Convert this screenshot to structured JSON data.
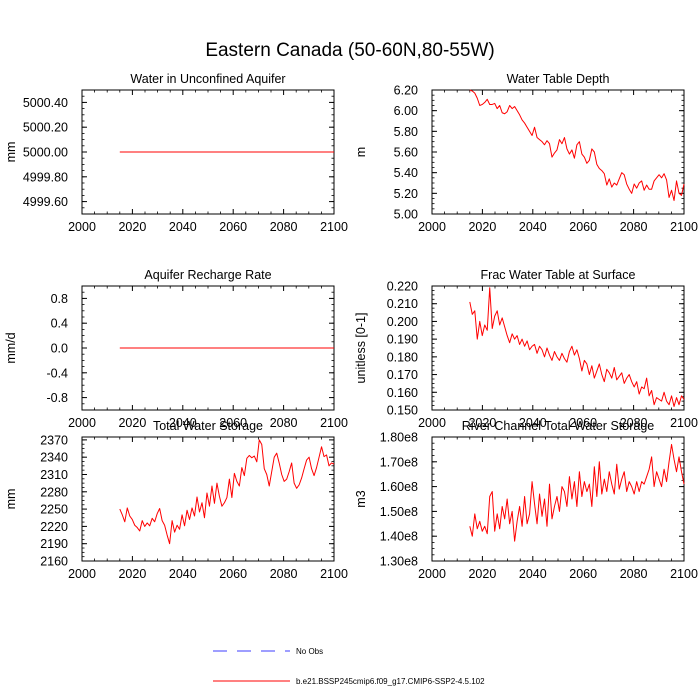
{
  "main_title": "Eastern Canada (50-60N,80-55W)",
  "colors": {
    "series": "#ff0000",
    "obs": "#3c3cff",
    "axis": "#000000"
  },
  "legend": {
    "obs_label": "No Obs",
    "model_label": "b.e21.BSSP245cmip6.f09_g17.CMIP6-SSP2-4.5.102"
  },
  "chart_data": [
    {
      "id": "water-in-unconfined-aquifer",
      "type": "line",
      "title": "Water in Unconfined Aquifer",
      "ylabel": "mm",
      "xlim": [
        2000,
        2100
      ],
      "ylim": [
        4999.5,
        5000.5
      ],
      "xticks": [
        2000,
        2020,
        2040,
        2060,
        2080,
        2100
      ],
      "xtick_labels": [
        "2000",
        "2020",
        "2040",
        "2060",
        "2080",
        "2100"
      ],
      "yticks": [
        4999.6,
        4999.8,
        5000.0,
        5000.2,
        5000.4
      ],
      "ytick_labels": [
        "4999.60",
        "4999.80",
        "5000.00",
        "5000.20",
        "5000.40"
      ],
      "series": [
        {
          "name": "b.e21.BSSP245cmip6.f09_g17.CMIP6-SSP2-4.5.102",
          "x_start": 2015,
          "x_end": 2100,
          "values": [
            5000.0,
            5000.0
          ]
        }
      ]
    },
    {
      "id": "water-table-depth",
      "type": "line",
      "title": "Water Table Depth",
      "ylabel": "m",
      "xlim": [
        2000,
        2100
      ],
      "ylim": [
        5.0,
        6.2
      ],
      "xticks": [
        2000,
        2020,
        2040,
        2060,
        2080,
        2100
      ],
      "xtick_labels": [
        "2000",
        "2020",
        "2040",
        "2060",
        "2080",
        "2100"
      ],
      "yticks": [
        5.0,
        5.2,
        5.4,
        5.6,
        5.8,
        6.0,
        6.2
      ],
      "ytick_labels": [
        "5.00",
        "5.20",
        "5.40",
        "5.60",
        "5.80",
        "6.00",
        "6.20"
      ],
      "series": [
        {
          "name": "b.e21.BSSP245cmip6.f09_g17.CMIP6-SSP2-4.5.102",
          "x_start": 2015,
          "x_end": 2100,
          "values": [
            6.2,
            6.19,
            6.17,
            6.12,
            6.05,
            6.06,
            6.08,
            6.11,
            6.06,
            6.06,
            6.07,
            6.02,
            6.05,
            5.98,
            5.97,
            5.99,
            6.05,
            6.02,
            6.04,
            6.0,
            5.96,
            5.91,
            5.88,
            5.84,
            5.8,
            5.76,
            5.84,
            5.74,
            5.72,
            5.7,
            5.67,
            5.71,
            5.68,
            5.55,
            5.59,
            5.62,
            5.72,
            5.68,
            5.74,
            5.63,
            5.58,
            5.62,
            5.54,
            5.67,
            5.7,
            5.58,
            5.55,
            5.49,
            5.52,
            5.63,
            5.6,
            5.48,
            5.44,
            5.42,
            5.39,
            5.28,
            5.34,
            5.26,
            5.3,
            5.28,
            5.34,
            5.4,
            5.38,
            5.29,
            5.24,
            5.2,
            5.29,
            5.25,
            5.3,
            5.32,
            5.23,
            5.28,
            5.24,
            5.24,
            5.32,
            5.35,
            5.38,
            5.35,
            5.39,
            5.33,
            5.16,
            5.23,
            5.13,
            5.32,
            5.2,
            5.18,
            5.29
          ]
        }
      ]
    },
    {
      "id": "aquifer-recharge-rate",
      "type": "line",
      "title": "Aquifer Recharge Rate",
      "ylabel": "mm/d",
      "xlim": [
        2000,
        2100
      ],
      "ylim": [
        -1.0,
        1.0
      ],
      "xticks": [
        2000,
        2020,
        2040,
        2060,
        2080,
        2100
      ],
      "xtick_labels": [
        "2000",
        "2020",
        "2040",
        "2060",
        "2080",
        "2100"
      ],
      "yticks": [
        -0.8,
        -0.4,
        0.0,
        0.4,
        0.8
      ],
      "ytick_labels": [
        "-0.8",
        "-0.4",
        "0.0",
        "0.4",
        "0.8"
      ],
      "series": [
        {
          "name": "b.e21.BSSP245cmip6.f09_g17.CMIP6-SSP2-4.5.102",
          "x_start": 2015,
          "x_end": 2100,
          "values": [
            0.0,
            0.0
          ]
        }
      ]
    },
    {
      "id": "frac-water-table-at-surface",
      "type": "line",
      "title": "Frac Water Table at Surface",
      "ylabel": "unitless [0-1]",
      "xlim": [
        2000,
        2100
      ],
      "ylim": [
        0.15,
        0.22
      ],
      "xticks": [
        2000,
        2020,
        2040,
        2060,
        2080,
        2100
      ],
      "xtick_labels": [
        "2000",
        "2020",
        "2040",
        "2060",
        "2080",
        "2100"
      ],
      "yticks": [
        0.15,
        0.16,
        0.17,
        0.18,
        0.19,
        0.2,
        0.21,
        0.22
      ],
      "ytick_labels": [
        "0.150",
        "0.160",
        "0.170",
        "0.180",
        "0.190",
        "0.200",
        "0.210",
        "0.220"
      ],
      "series": [
        {
          "name": "b.e21.BSSP245cmip6.f09_g17.CMIP6-SSP2-4.5.102",
          "x_start": 2015,
          "x_end": 2100,
          "values": [
            0.211,
            0.204,
            0.206,
            0.19,
            0.2,
            0.192,
            0.198,
            0.195,
            0.219,
            0.196,
            0.203,
            0.206,
            0.198,
            0.202,
            0.197,
            0.192,
            0.188,
            0.193,
            0.19,
            0.192,
            0.187,
            0.19,
            0.186,
            0.189,
            0.184,
            0.186,
            0.187,
            0.182,
            0.186,
            0.184,
            0.18,
            0.185,
            0.181,
            0.178,
            0.183,
            0.18,
            0.178,
            0.182,
            0.179,
            0.177,
            0.183,
            0.186,
            0.181,
            0.184,
            0.179,
            0.172,
            0.178,
            0.176,
            0.17,
            0.175,
            0.168,
            0.172,
            0.176,
            0.17,
            0.166,
            0.173,
            0.171,
            0.168,
            0.174,
            0.167,
            0.169,
            0.171,
            0.165,
            0.168,
            0.17,
            0.166,
            0.163,
            0.166,
            0.159,
            0.163,
            0.162,
            0.168,
            0.158,
            0.161,
            0.153,
            0.157,
            0.156,
            0.155,
            0.16,
            0.155,
            0.153,
            0.158,
            0.152,
            0.157,
            0.153,
            0.158,
            0.156
          ]
        }
      ]
    },
    {
      "id": "total-water-storage",
      "type": "line",
      "title": "Total Water Storage",
      "ylabel": "mm",
      "xlim": [
        2000,
        2100
      ],
      "ylim": [
        2160,
        2375
      ],
      "xticks": [
        2000,
        2020,
        2040,
        2060,
        2080,
        2100
      ],
      "xtick_labels": [
        "2000",
        "2020",
        "2040",
        "2060",
        "2080",
        "2100"
      ],
      "yticks": [
        2160,
        2190,
        2220,
        2250,
        2280,
        2310,
        2340,
        2370
      ],
      "ytick_labels": [
        "2160",
        "2190",
        "2220",
        "2250",
        "2280",
        "2310",
        "2340",
        "2370"
      ],
      "series": [
        {
          "name": "b.e21.BSSP245cmip6.f09_g17.CMIP6-SSP2-4.5.102",
          "x_start": 2015,
          "x_end": 2100,
          "values": [
            2250,
            2240,
            2228,
            2252,
            2238,
            2232,
            2222,
            2218,
            2212,
            2230,
            2220,
            2226,
            2221,
            2234,
            2228,
            2242,
            2251,
            2230,
            2222,
            2205,
            2190,
            2230,
            2210,
            2222,
            2215,
            2240,
            2221,
            2248,
            2232,
            2252,
            2238,
            2271,
            2245,
            2261,
            2235,
            2278,
            2255,
            2290,
            2260,
            2295,
            2272,
            2255,
            2261,
            2270,
            2302,
            2270,
            2312,
            2298,
            2290,
            2322,
            2308,
            2338,
            2343,
            2339,
            2342,
            2332,
            2370,
            2362,
            2320,
            2310,
            2290,
            2315,
            2340,
            2347,
            2330,
            2310,
            2298,
            2302,
            2315,
            2330,
            2295,
            2286,
            2292,
            2304,
            2320,
            2335,
            2340,
            2320,
            2308,
            2322,
            2340,
            2358,
            2341,
            2344,
            2325,
            2330,
            2328
          ]
        }
      ]
    },
    {
      "id": "river-channel-total-water-storage",
      "type": "line",
      "title": "River Channel Total Water Storage",
      "ylabel": "m3",
      "xlim": [
        2000,
        2100
      ],
      "ylim": [
        130000000.0,
        180000000.0
      ],
      "xticks": [
        2000,
        2020,
        2040,
        2060,
        2080,
        2100
      ],
      "xtick_labels": [
        "2000",
        "2020",
        "2040",
        "2060",
        "2080",
        "2100"
      ],
      "yticks": [
        130000000.0,
        140000000.0,
        150000000.0,
        160000000.0,
        170000000.0,
        180000000.0
      ],
      "ytick_labels": [
        "1.30e8",
        "1.40e8",
        "1.50e8",
        "1.60e8",
        "1.70e8",
        "1.80e8"
      ],
      "series": [
        {
          "name": "b.e21.BSSP245cmip6.f09_g17.CMIP6-SSP2-4.5.102",
          "x_start": 2015,
          "x_end": 2100,
          "values": [
            144000000.0,
            140000000.0,
            149000000.0,
            143000000.0,
            146000000.0,
            142000000.0,
            144000000.0,
            141000000.0,
            156000000.0,
            158000000.0,
            142000000.0,
            149000000.0,
            143000000.0,
            152000000.0,
            147000000.0,
            155000000.0,
            145000000.0,
            150000000.0,
            138000000.0,
            146000000.0,
            152000000.0,
            144000000.0,
            156000000.0,
            145000000.0,
            149000000.0,
            162000000.0,
            153000000.0,
            145000000.0,
            157000000.0,
            148000000.0,
            155000000.0,
            144000000.0,
            161000000.0,
            147000000.0,
            152000000.0,
            156000000.0,
            150000000.0,
            160000000.0,
            158000000.0,
            152000000.0,
            164000000.0,
            155000000.0,
            162000000.0,
            152000000.0,
            166000000.0,
            156000000.0,
            162000000.0,
            158000000.0,
            161000000.0,
            152000000.0,
            168000000.0,
            156000000.0,
            170000000.0,
            157000000.0,
            163000000.0,
            158000000.0,
            166000000.0,
            161000000.0,
            157000000.0,
            169000000.0,
            159000000.0,
            163000000.0,
            166000000.0,
            158000000.0,
            162000000.0,
            160000000.0,
            157000000.0,
            162000000.0,
            158000000.0,
            162000000.0,
            161000000.0,
            164000000.0,
            167000000.0,
            172000000.0,
            160000000.0,
            166000000.0,
            163000000.0,
            160000000.0,
            167000000.0,
            162000000.0,
            170000000.0,
            177000000.0,
            171000000.0,
            166000000.0,
            172000000.0,
            166000000.0,
            161000000.0
          ]
        }
      ]
    }
  ]
}
